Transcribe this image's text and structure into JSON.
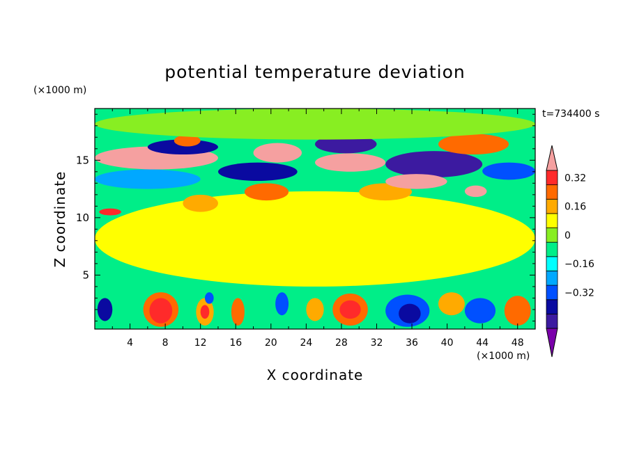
{
  "chart_data": {
    "type": "heatmap",
    "title": "potential temperature deviation",
    "xlabel": "X coordinate",
    "ylabel": "Z coordinate",
    "x_unit": "(×1000 m)",
    "y_unit": "(×1000 m)",
    "time_label": "t=734400 s",
    "xlim": [
      0,
      50
    ],
    "ylim": [
      0.3,
      19.5
    ],
    "x_ticks": [
      4,
      8,
      12,
      16,
      20,
      24,
      28,
      32,
      36,
      40,
      44,
      48
    ],
    "x_tick_labels": [
      "4",
      "8",
      "12",
      "16",
      "20",
      "24",
      "28",
      "32",
      "36",
      "40",
      "44",
      "48"
    ],
    "y_ticks": [
      5,
      10,
      15
    ],
    "y_tick_labels": [
      "5",
      "10",
      "15"
    ],
    "colorbar": {
      "levels": [
        -0.48,
        -0.4,
        -0.32,
        -0.24,
        -0.16,
        -0.08,
        0,
        0.08,
        0.16,
        0.24,
        0.32,
        0.4
      ],
      "tick_values": [
        -0.32,
        -0.16,
        0,
        0.16,
        0.32
      ],
      "tick_labels": [
        "−0.32",
        "−0.16",
        "0",
        "0.16",
        "0.32"
      ],
      "colors": [
        "#7a00aa",
        "#3c1aa0",
        "#0a0aa0",
        "#0050ff",
        "#00a8ff",
        "#00ffff",
        "#00ee88",
        "#88ee22",
        "#ffff00",
        "#ffaa00",
        "#ff6a00",
        "#ff2a2a",
        "#f5a0a0"
      ],
      "extend": "both"
    },
    "features": [
      {
        "x0": 0,
        "x1": 50,
        "z0": 0.3,
        "z1": 3.7,
        "value": -0.08
      },
      {
        "x0": 5.5,
        "x1": 9.5,
        "z0": 0.5,
        "z1": 3.5,
        "value": 0.24
      },
      {
        "x0": 6.2,
        "x1": 8.8,
        "z0": 0.8,
        "z1": 3,
        "value": 0.32
      },
      {
        "x0": 0.3,
        "x1": 2,
        "z0": 1,
        "z1": 3,
        "value": -0.4
      },
      {
        "x0": 11.5,
        "x1": 13.5,
        "z0": 0.6,
        "z1": 3,
        "value": 0.16
      },
      {
        "x0": 12,
        "x1": 13,
        "z0": 1.2,
        "z1": 2.4,
        "value": 0.32
      },
      {
        "x0": 15.5,
        "x1": 17,
        "z0": 0.6,
        "z1": 3,
        "value": 0.24
      },
      {
        "x0": 27,
        "x1": 31,
        "z0": 0.6,
        "z1": 3.4,
        "value": 0.24
      },
      {
        "x0": 27.8,
        "x1": 30.2,
        "z0": 1.2,
        "z1": 2.8,
        "value": 0.32
      },
      {
        "x0": 24,
        "x1": 26,
        "z0": 1,
        "z1": 3,
        "value": 0.16
      },
      {
        "x0": 46.5,
        "x1": 49.5,
        "z0": 0.6,
        "z1": 3.2,
        "value": 0.24
      },
      {
        "x0": 33,
        "x1": 38,
        "z0": 0.5,
        "z1": 3.3,
        "value": -0.32
      },
      {
        "x0": 34.5,
        "x1": 37,
        "z0": 0.8,
        "z1": 2.5,
        "value": -0.4
      },
      {
        "x0": 42,
        "x1": 45.5,
        "z0": 0.8,
        "z1": 3,
        "value": -0.32
      },
      {
        "x0": 12.5,
        "x1": 13.5,
        "z0": 2.5,
        "z1": 3.5,
        "value": -0.32
      },
      {
        "x0": 20.5,
        "x1": 22,
        "z0": 1.5,
        "z1": 3.5,
        "value": -0.32
      },
      {
        "x0": 39,
        "x1": 42,
        "z0": 1.5,
        "z1": 3.5,
        "value": 0.16
      },
      {
        "x0": 0,
        "x1": 50,
        "z0": 4,
        "z1": 12.3,
        "value": 0.08
      },
      {
        "x0": 0.5,
        "x1": 3,
        "z0": 10.2,
        "z1": 10.8,
        "value": 0.32
      },
      {
        "x0": 10,
        "x1": 14,
        "z0": 10.5,
        "z1": 12,
        "value": 0.16
      },
      {
        "x0": 0,
        "x1": 50,
        "z0": 12.3,
        "z1": 16.8,
        "value": -0.08
      },
      {
        "x0": 0,
        "x1": 12,
        "z0": 12.5,
        "z1": 14.2,
        "value": -0.24
      },
      {
        "x0": 17,
        "x1": 22,
        "z0": 11.5,
        "z1": 13,
        "value": 0.24
      },
      {
        "x0": 30,
        "x1": 36,
        "z0": 11.5,
        "z1": 13,
        "value": 0.16
      },
      {
        "x0": 0,
        "x1": 14,
        "z0": 14.2,
        "z1": 16.2,
        "value": 0.4
      },
      {
        "x0": 1,
        "x1": 13,
        "z0": 14.5,
        "z1": 15.8,
        "value": 0.48
      },
      {
        "x0": 6,
        "x1": 14,
        "z0": 15.5,
        "z1": 16.8,
        "value": -0.4
      },
      {
        "x0": 14,
        "x1": 23,
        "z0": 13.2,
        "z1": 14.8,
        "value": -0.4
      },
      {
        "x0": 18,
        "x1": 23.5,
        "z0": 14.8,
        "z1": 16.5,
        "value": 0.4
      },
      {
        "x0": 18.5,
        "x1": 23,
        "z0": 15,
        "z1": 16.2,
        "value": 0.48
      },
      {
        "x0": 25,
        "x1": 33,
        "z0": 14,
        "z1": 15.6,
        "value": 0.48
      },
      {
        "x0": 25,
        "x1": 32,
        "z0": 15.6,
        "z1": 17.2,
        "value": -0.48
      },
      {
        "x0": 33,
        "x1": 44,
        "z0": 13.5,
        "z1": 15.8,
        "value": -0.48
      },
      {
        "x0": 33,
        "x1": 40,
        "z0": 12.5,
        "z1": 13.8,
        "value": 0.4
      },
      {
        "x0": 39,
        "x1": 47,
        "z0": 15.5,
        "z1": 17.3,
        "value": 0.24
      },
      {
        "x0": 44,
        "x1": 50,
        "z0": 13.3,
        "z1": 14.8,
        "value": -0.32
      },
      {
        "x0": 42,
        "x1": 44.5,
        "z0": 11.8,
        "z1": 12.8,
        "value": 0.48
      },
      {
        "x0": 9,
        "x1": 12,
        "z0": 16.2,
        "z1": 17.2,
        "value": 0.24
      },
      {
        "x0": 0,
        "x1": 50,
        "z0": 16.8,
        "z1": 19.5,
        "value": 0
      }
    ]
  }
}
